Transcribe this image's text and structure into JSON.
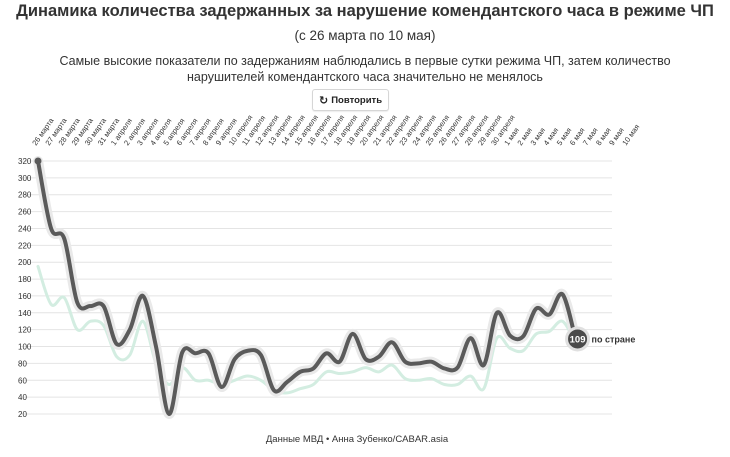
{
  "title": "Динамика количества задержанных за нарушение комендантского часа в режиме ЧП",
  "subtitle": "(с 26 марта по 10 мая)",
  "description": "Самые высокие показатели по задержаниям наблюдались в первые сутки режима ЧП, затем количество нарушителей комендантского часа значительно не менялось",
  "replay_label": "Повторить",
  "replay_icon": "replay-icon",
  "source": "Данные МВД • Анна Зубенко/CABAR.asia",
  "chart_data": {
    "type": "line",
    "x": [
      "26 марта",
      "27 марта",
      "28 марта",
      "29 марта",
      "30 марта",
      "31 марта",
      "1 апреля",
      "2 апреля",
      "3 апреля",
      "4 апреля",
      "5 апреля",
      "6 апреля",
      "7 апреля",
      "8 апреля",
      "9 апреля",
      "10 апреля",
      "11 апреля",
      "12 апреля",
      "13 апреля",
      "14 апреля",
      "15 апреля",
      "16 апреля",
      "17 апреля",
      "18 апреля",
      "19 апреля",
      "20 апреля",
      "21 апреля",
      "22 апреля",
      "23 апреля",
      "24 апреля",
      "25 апреля",
      "26 апреля",
      "27 апреля",
      "28 апреля",
      "29 апреля",
      "30 апреля",
      "1 мая",
      "2 мая",
      "3 мая",
      "4 мая",
      "5 мая",
      "6 мая",
      "7 мая",
      "8 мая",
      "9 мая",
      "10 мая"
    ],
    "series": [
      {
        "name": "по стране",
        "color": "#5a5a5a",
        "values": [
          320,
          240,
          228,
          152,
          148,
          148,
          103,
          120,
          160,
          100,
          20,
          93,
          92,
          92,
          52,
          85,
          95,
          90,
          48,
          58,
          70,
          74,
          92,
          82,
          115,
          85,
          88,
          105,
          82,
          80,
          82,
          74,
          75,
          110,
          78,
          140,
          113,
          112,
          145,
          138,
          162,
          109,
          null,
          null,
          null,
          null
        ]
      },
      {
        "name": "",
        "color": "#d3ede1",
        "values": [
          195,
          150,
          158,
          120,
          130,
          125,
          88,
          90,
          130,
          80,
          55,
          75,
          60,
          60,
          55,
          60,
          65,
          60,
          48,
          45,
          50,
          55,
          70,
          68,
          70,
          75,
          70,
          78,
          62,
          60,
          62,
          55,
          55,
          65,
          50,
          110,
          98,
          95,
          115,
          118,
          130,
          104,
          null,
          null,
          null,
          null
        ]
      }
    ],
    "end_label": {
      "value": "109",
      "text": "по стране"
    },
    "y_ticks": [
      20,
      40,
      60,
      80,
      100,
      120,
      140,
      160,
      180,
      200,
      220,
      240,
      260,
      280,
      300,
      320
    ],
    "ylim": [
      20,
      320
    ],
    "grid": true
  }
}
